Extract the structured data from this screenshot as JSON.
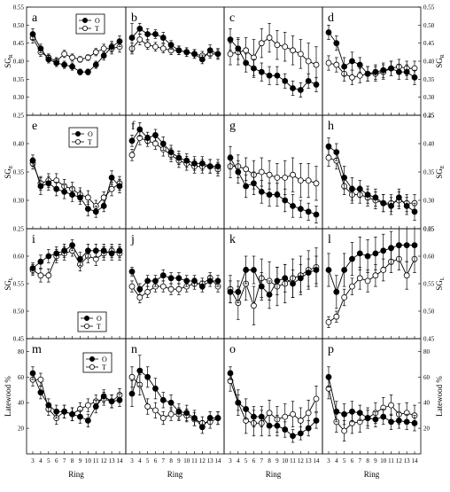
{
  "chart_data": {
    "type": "line",
    "x_categories": [
      3,
      4,
      5,
      6,
      7,
      8,
      9,
      10,
      11,
      12,
      13,
      14
    ],
    "xlabel": "Ring",
    "legend": [
      "O",
      "T"
    ],
    "rows": [
      {
        "ylabel_main": "SG",
        "ylabel_sub": "R",
        "ylim": [
          0.25,
          0.55
        ],
        "yticks": [
          "0.25",
          "0.30",
          "0.35",
          "0.40",
          "0.45",
          "0.50",
          "0.55"
        ],
        "right_yticks": [
          "0.25",
          "0.30",
          "0.35",
          "0.40",
          "0.45",
          "0.50",
          "0.55"
        ],
        "legend_panel": 0,
        "legend_pos": "top-left"
      },
      {
        "ylabel_main": "SG",
        "ylabel_sub": "E",
        "ylim": [
          0.25,
          0.45
        ],
        "yticks": [
          "0.25",
          "0.30",
          "0.35",
          "0.40"
        ],
        "right_yticks": [
          "0.25",
          "0.30",
          "0.35",
          "0.40",
          "0.45"
        ],
        "legend_panel": 0,
        "legend_pos": "top-center"
      },
      {
        "ylabel_main": "SG",
        "ylabel_sub": "L",
        "ylim": [
          0.45,
          0.65
        ],
        "yticks": [
          "0.45",
          "0.50",
          "0.55",
          "0.60"
        ],
        "right_yticks": [
          "0.45",
          "0.50",
          "0.55",
          "0.60",
          "0.65"
        ],
        "legend_panel": 0,
        "legend_pos": "bottom-right"
      },
      {
        "ylabel_main": "Latewood %",
        "ylabel_sub": "",
        "ylim": [
          0,
          90
        ],
        "yticks": [
          "20",
          "40",
          "60",
          "80"
        ],
        "right_yticks": [
          "20",
          "40",
          "60",
          "80"
        ],
        "legend_panel": 0,
        "legend_pos": "top-right"
      }
    ],
    "panels": [
      {
        "letter": "a",
        "O": [
          0.475,
          0.435,
          0.405,
          0.395,
          0.39,
          0.385,
          0.37,
          0.37,
          0.39,
          0.415,
          0.44,
          0.455
        ],
        "T": [
          0.465,
          0.425,
          0.41,
          0.4,
          0.42,
          0.41,
          0.405,
          0.41,
          0.425,
          0.435,
          0.435,
          0.44
        ],
        "O_err": [
          0.015,
          0.012,
          0.01,
          0.01,
          0.01,
          0.01,
          0.008,
          0.008,
          0.01,
          0.012,
          0.015,
          0.015
        ],
        "T_err": [
          0.015,
          0.012,
          0.01,
          0.01,
          0.01,
          0.01,
          0.008,
          0.008,
          0.01,
          0.012,
          0.015,
          0.015
        ]
      },
      {
        "letter": "b",
        "O": [
          0.465,
          0.49,
          0.475,
          0.475,
          0.465,
          0.445,
          0.43,
          0.425,
          0.42,
          0.405,
          0.43,
          0.42
        ],
        "T": [
          0.435,
          0.46,
          0.445,
          0.44,
          0.435,
          0.43,
          0.43,
          0.425,
          0.42,
          0.415,
          0.42,
          0.42
        ],
        "O_err": [
          0.04,
          0.015,
          0.015,
          0.012,
          0.015,
          0.012,
          0.012,
          0.012,
          0.012,
          0.012,
          0.015,
          0.015
        ],
        "T_err": [
          0.015,
          0.015,
          0.012,
          0.012,
          0.012,
          0.012,
          0.012,
          0.012,
          0.012,
          0.012,
          0.012,
          0.012
        ]
      },
      {
        "letter": "c",
        "O": [
          0.46,
          0.435,
          0.395,
          0.38,
          0.37,
          0.36,
          0.36,
          0.345,
          0.325,
          0.32,
          0.345,
          0.335
        ],
        "T": [
          0.42,
          0.425,
          0.43,
          0.41,
          0.45,
          0.465,
          0.445,
          0.44,
          0.43,
          0.42,
          0.4,
          0.39
        ],
        "O_err": [
          0.03,
          0.03,
          0.025,
          0.025,
          0.025,
          0.025,
          0.025,
          0.02,
          0.02,
          0.02,
          0.02,
          0.02
        ],
        "T_err": [
          0.03,
          0.035,
          0.035,
          0.05,
          0.04,
          0.04,
          0.04,
          0.04,
          0.04,
          0.04,
          0.05,
          0.05
        ]
      },
      {
        "letter": "d",
        "O": [
          0.48,
          0.45,
          0.385,
          0.4,
          0.39,
          0.365,
          0.37,
          0.375,
          0.38,
          0.37,
          0.37,
          0.355
        ],
        "T": [
          0.395,
          0.39,
          0.365,
          0.355,
          0.36,
          0.365,
          0.365,
          0.37,
          0.38,
          0.385,
          0.38,
          0.38
        ],
        "O_err": [
          0.02,
          0.02,
          0.025,
          0.025,
          0.02,
          0.02,
          0.02,
          0.02,
          0.02,
          0.02,
          0.02,
          0.02
        ],
        "T_err": [
          0.02,
          0.02,
          0.02,
          0.02,
          0.02,
          0.02,
          0.02,
          0.02,
          0.02,
          0.02,
          0.02,
          0.02
        ]
      },
      {
        "letter": "e",
        "O": [
          0.37,
          0.325,
          0.33,
          0.32,
          0.315,
          0.31,
          0.305,
          0.285,
          0.28,
          0.29,
          0.34,
          0.325
        ],
        "T": [
          0.365,
          0.33,
          0.335,
          0.335,
          0.325,
          0.32,
          0.31,
          0.305,
          0.29,
          0.305,
          0.32,
          0.33
        ],
        "O_err": [
          0.01,
          0.015,
          0.012,
          0.012,
          0.012,
          0.012,
          0.012,
          0.012,
          0.01,
          0.01,
          0.012,
          0.012
        ],
        "T_err": [
          0.01,
          0.012,
          0.012,
          0.012,
          0.012,
          0.012,
          0.012,
          0.012,
          0.01,
          0.01,
          0.012,
          0.012
        ]
      },
      {
        "letter": "f",
        "O": [
          0.405,
          0.425,
          0.41,
          0.415,
          0.4,
          0.385,
          0.375,
          0.37,
          0.365,
          0.365,
          0.36,
          0.36
        ],
        "T": [
          0.38,
          0.41,
          0.405,
          0.4,
          0.39,
          0.38,
          0.37,
          0.365,
          0.36,
          0.36,
          0.36,
          0.355
        ],
        "O_err": [
          0.01,
          0.012,
          0.01,
          0.01,
          0.012,
          0.012,
          0.012,
          0.012,
          0.012,
          0.012,
          0.012,
          0.012
        ],
        "T_err": [
          0.01,
          0.012,
          0.01,
          0.01,
          0.012,
          0.012,
          0.012,
          0.012,
          0.012,
          0.012,
          0.012,
          0.012
        ]
      },
      {
        "letter": "g",
        "O": [
          0.375,
          0.35,
          0.325,
          0.33,
          0.315,
          0.31,
          0.31,
          0.3,
          0.29,
          0.285,
          0.28,
          0.275
        ],
        "T": [
          0.36,
          0.36,
          0.355,
          0.345,
          0.35,
          0.345,
          0.34,
          0.34,
          0.345,
          0.335,
          0.335,
          0.33
        ],
        "O_err": [
          0.02,
          0.02,
          0.02,
          0.02,
          0.02,
          0.02,
          0.02,
          0.02,
          0.02,
          0.015,
          0.015,
          0.015
        ],
        "T_err": [
          0.02,
          0.02,
          0.02,
          0.025,
          0.025,
          0.025,
          0.025,
          0.03,
          0.03,
          0.03,
          0.03,
          0.03
        ]
      },
      {
        "letter": "h",
        "O": [
          0.395,
          0.385,
          0.34,
          0.32,
          0.32,
          0.31,
          0.305,
          0.295,
          0.29,
          0.305,
          0.29,
          0.28
        ],
        "T": [
          0.375,
          0.37,
          0.325,
          0.31,
          0.31,
          0.305,
          0.3,
          0.295,
          0.295,
          0.3,
          0.295,
          0.295
        ],
        "O_err": [
          0.015,
          0.015,
          0.02,
          0.02,
          0.015,
          0.015,
          0.015,
          0.015,
          0.015,
          0.015,
          0.015,
          0.015
        ],
        "T_err": [
          0.015,
          0.015,
          0.015,
          0.015,
          0.015,
          0.015,
          0.015,
          0.015,
          0.015,
          0.015,
          0.015,
          0.015
        ]
      },
      {
        "letter": "i",
        "O": [
          0.578,
          0.59,
          0.6,
          0.605,
          0.61,
          0.62,
          0.595,
          0.61,
          0.61,
          0.61,
          0.605,
          0.61
        ],
        "T": [
          0.575,
          0.565,
          0.565,
          0.6,
          0.605,
          0.61,
          0.585,
          0.6,
          0.595,
          0.605,
          0.61,
          0.605
        ],
        "O_err": [
          0.01,
          0.012,
          0.012,
          0.012,
          0.012,
          0.01,
          0.012,
          0.012,
          0.012,
          0.012,
          0.012,
          0.012
        ],
        "T_err": [
          0.01,
          0.012,
          0.012,
          0.012,
          0.012,
          0.01,
          0.012,
          0.012,
          0.012,
          0.012,
          0.012,
          0.012
        ]
      },
      {
        "letter": "j",
        "O": [
          0.572,
          0.54,
          0.555,
          0.555,
          0.565,
          0.56,
          0.56,
          0.555,
          0.555,
          0.545,
          0.555,
          0.555
        ],
        "T": [
          0.545,
          0.525,
          0.535,
          0.545,
          0.545,
          0.54,
          0.54,
          0.545,
          0.55,
          0.55,
          0.56,
          0.545
        ],
        "O_err": [
          0.008,
          0.01,
          0.01,
          0.01,
          0.01,
          0.01,
          0.01,
          0.01,
          0.01,
          0.01,
          0.01,
          0.01
        ],
        "T_err": [
          0.01,
          0.01,
          0.01,
          0.01,
          0.01,
          0.01,
          0.01,
          0.01,
          0.01,
          0.01,
          0.01,
          0.01
        ]
      },
      {
        "letter": "k",
        "O": [
          0.535,
          0.535,
          0.575,
          0.575,
          0.545,
          0.53,
          0.555,
          0.56,
          0.55,
          0.56,
          0.57,
          0.575
        ],
        "T": [
          0.54,
          0.515,
          0.55,
          0.51,
          0.56,
          0.555,
          0.545,
          0.55,
          0.56,
          0.565,
          0.575,
          0.58
        ],
        "O_err": [
          0.02,
          0.02,
          0.025,
          0.025,
          0.025,
          0.025,
          0.025,
          0.025,
          0.025,
          0.025,
          0.025,
          0.025
        ],
        "T_err": [
          0.025,
          0.03,
          0.03,
          0.035,
          0.035,
          0.035,
          0.035,
          0.035,
          0.035,
          0.035,
          0.035,
          0.035
        ]
      },
      {
        "letter": "l",
        "O": [
          0.575,
          0.535,
          0.575,
          0.595,
          0.605,
          0.6,
          0.605,
          0.61,
          0.615,
          0.62,
          0.62,
          0.62
        ],
        "T": [
          0.48,
          0.49,
          0.525,
          0.545,
          0.56,
          0.555,
          0.565,
          0.575,
          0.59,
          0.595,
          0.565,
          0.595
        ],
        "O_err": [
          0.03,
          0.03,
          0.03,
          0.03,
          0.03,
          0.03,
          0.03,
          0.03,
          0.03,
          0.03,
          0.03,
          0.03
        ],
        "T_err": [
          0.01,
          0.01,
          0.015,
          0.015,
          0.02,
          0.02,
          0.02,
          0.02,
          0.02,
          0.02,
          0.025,
          0.025
        ]
      },
      {
        "letter": "m",
        "O": [
          63,
          48,
          38,
          33,
          33,
          31,
          29,
          26,
          37,
          45,
          41,
          42
        ],
        "T": [
          58,
          58,
          35,
          28,
          33,
          31,
          35,
          38,
          41,
          43,
          41,
          46
        ],
        "O_err": [
          5,
          5,
          5,
          5,
          5,
          5,
          5,
          5,
          5,
          5,
          5,
          5
        ],
        "T_err": [
          5,
          5,
          5,
          5,
          5,
          5,
          5,
          5,
          5,
          5,
          5,
          5
        ]
      },
      {
        "letter": "n",
        "O": [
          47,
          65,
          60,
          51,
          42,
          40,
          33,
          32,
          28,
          21,
          28,
          28
        ],
        "T": [
          60,
          54,
          37,
          34,
          28,
          31,
          31,
          30,
          27,
          24,
          25,
          28
        ],
        "O_err": [
          10,
          12,
          8,
          8,
          6,
          6,
          6,
          6,
          6,
          5,
          5,
          5
        ],
        "T_err": [
          8,
          8,
          6,
          6,
          5,
          5,
          5,
          5,
          5,
          5,
          5,
          5
        ]
      },
      {
        "letter": "o",
        "O": [
          63,
          40,
          35,
          29,
          29,
          22,
          22,
          19,
          14,
          16,
          20,
          26
        ],
        "T": [
          57,
          40,
          26,
          24,
          24,
          32,
          27,
          29,
          31,
          26,
          32,
          43
        ],
        "O_err": [
          5,
          6,
          8,
          8,
          8,
          8,
          8,
          6,
          5,
          5,
          6,
          6
        ],
        "T_err": [
          8,
          10,
          10,
          10,
          10,
          10,
          10,
          10,
          10,
          10,
          10,
          10
        ]
      },
      {
        "letter": "p",
        "O": [
          60,
          33,
          31,
          33,
          32,
          28,
          27,
          29,
          25,
          26,
          25,
          24
        ],
        "T": [
          51,
          25,
          18,
          24,
          25,
          28,
          32,
          36,
          38,
          31,
          32,
          30
        ],
        "O_err": [
          8,
          8,
          8,
          8,
          6,
          6,
          6,
          6,
          6,
          6,
          6,
          6
        ],
        "T_err": [
          8,
          8,
          8,
          8,
          8,
          8,
          8,
          8,
          8,
          8,
          8,
          8
        ]
      }
    ]
  }
}
